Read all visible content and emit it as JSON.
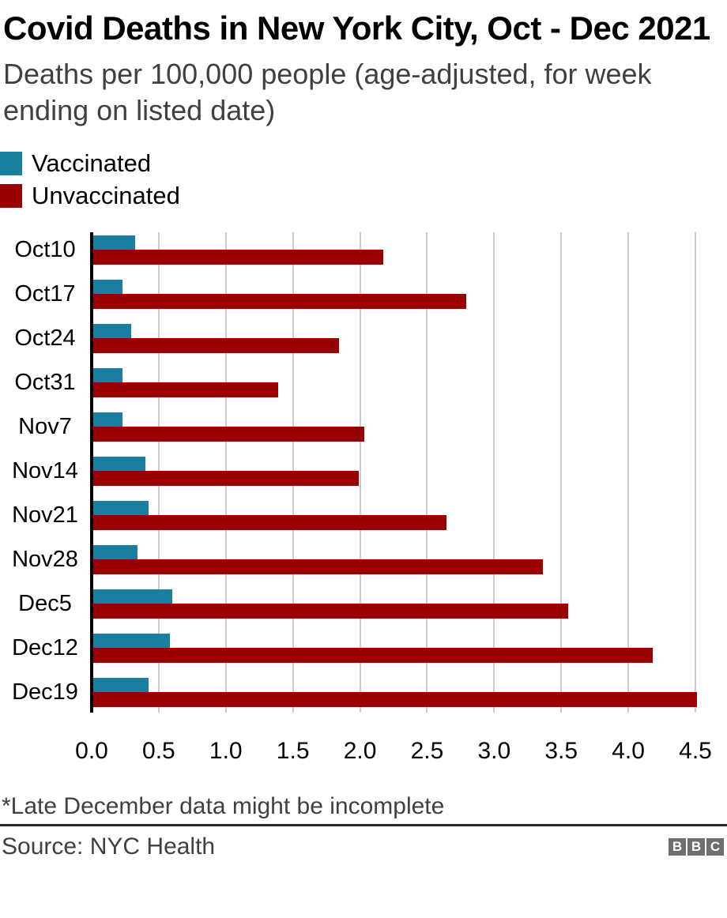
{
  "header": {
    "title": "Covid Deaths in New York City, Oct - Dec 2021",
    "subtitle": "Deaths per 100,000 people (age-adjusted, for week ending on listed date)"
  },
  "legend": {
    "items": [
      {
        "label": "Vaccinated",
        "color": "#1B80A0"
      },
      {
        "label": "Unvaccinated",
        "color": "#990000"
      }
    ]
  },
  "chart_data": {
    "type": "bar",
    "orientation": "horizontal",
    "title": "Covid Deaths in New York City, Oct - Dec 2021",
    "subtitle": "Deaths per 100,000 people (age-adjusted, for week ending on listed date)",
    "categories": [
      "Oct10",
      "Oct17",
      "Oct24",
      "Oct31",
      "Nov7",
      "Nov14",
      "Nov21",
      "Nov28",
      "Dec5",
      "Dec12",
      "Dec19"
    ],
    "series": [
      {
        "name": "Vaccinated",
        "color": "#1B80A0",
        "values": [
          0.31,
          0.22,
          0.28,
          0.22,
          0.22,
          0.39,
          0.41,
          0.33,
          0.59,
          0.57,
          0.41
        ]
      },
      {
        "name": "Unvaccinated",
        "color": "#990000",
        "values": [
          2.16,
          2.78,
          1.83,
          1.38,
          2.02,
          1.98,
          2.63,
          3.35,
          3.54,
          4.17,
          4.5
        ]
      }
    ],
    "xlim": [
      0,
      4.5
    ],
    "x_ticks": [
      "0.0",
      "0.5",
      "1.0",
      "1.5",
      "2.0",
      "2.5",
      "3.0",
      "3.5",
      "4.0",
      "4.5"
    ],
    "grid": true,
    "gridline_color": "#cccccc",
    "axis_color": "#000000",
    "legend_position": "top-left"
  },
  "footer": {
    "note": "*Late December data might be incomplete",
    "source": "Source: NYC Health",
    "logo_letters": [
      "B",
      "B",
      "C"
    ]
  }
}
